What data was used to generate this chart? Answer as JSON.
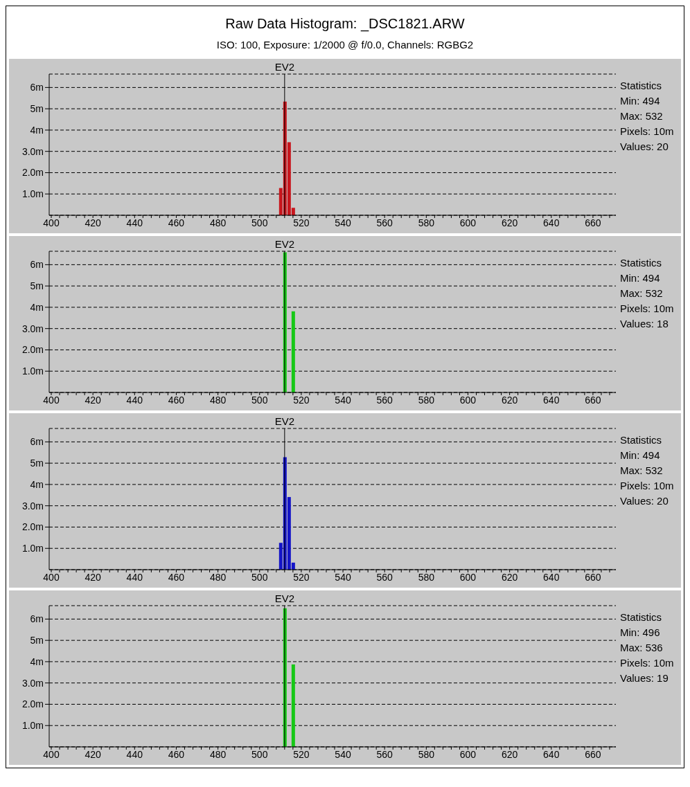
{
  "chart_data": [
    {
      "type": "bar",
      "title": "Raw Data Histogram: _DSC1821.ARW",
      "subtitle": "ISO: 100, Exposure: 1/2000 @ f/0.0, Channels: RGBG2",
      "x": [
        510,
        512,
        514,
        516
      ],
      "series": [
        {
          "color": "#c8161d",
          "values": [
            1.28,
            5.34,
            3.43,
            0.35
          ]
        }
      ],
      "xlim": [
        399,
        671
      ],
      "xticks": [
        400,
        {
          "value": 404,
          "label": null
        },
        {
          "value": 408,
          "label": null
        },
        {
          "value": 412,
          "label": null
        },
        {
          "value": 416,
          "label": null
        },
        420,
        {
          "value": 424,
          "label": null
        },
        {
          "value": 428,
          "label": null
        },
        {
          "value": 432,
          "label": null
        },
        {
          "value": 436,
          "label": null
        },
        440,
        {
          "value": 444,
          "label": null
        },
        {
          "value": 448,
          "label": null
        },
        {
          "value": 452,
          "label": null
        },
        {
          "value": 456,
          "label": null
        },
        460,
        {
          "value": 464,
          "label": null
        },
        {
          "value": 468,
          "label": null
        },
        {
          "value": 472,
          "label": null
        },
        {
          "value": 476,
          "label": null
        },
        480,
        {
          "value": 484,
          "label": null
        },
        {
          "value": 488,
          "label": null
        },
        {
          "value": 492,
          "label": null
        },
        {
          "value": 496,
          "label": null
        },
        500,
        {
          "value": 504,
          "label": null
        },
        {
          "value": 508,
          "label": null
        },
        {
          "value": 512,
          "label": null
        },
        {
          "value": 516,
          "label": null
        },
        520,
        {
          "value": 524,
          "label": null
        },
        {
          "value": 528,
          "label": null
        },
        {
          "value": 532,
          "label": null
        },
        {
          "value": 536,
          "label": null
        },
        540,
        {
          "value": 544,
          "label": null
        },
        {
          "value": 548,
          "label": null
        },
        {
          "value": 552,
          "label": null
        },
        {
          "value": 556,
          "label": null
        },
        560,
        {
          "value": 564,
          "label": null
        },
        {
          "value": 568,
          "label": null
        },
        {
          "value": 572,
          "label": null
        },
        {
          "value": 576,
          "label": null
        },
        580,
        {
          "value": 584,
          "label": null
        },
        {
          "value": 588,
          "label": null
        },
        {
          "value": 592,
          "label": null
        },
        {
          "value": 596,
          "label": null
        },
        600,
        {
          "value": 604,
          "label": null
        },
        {
          "value": 608,
          "label": null
        },
        {
          "value": 612,
          "label": null
        },
        {
          "value": 616,
          "label": null
        },
        620,
        {
          "value": 624,
          "label": null
        },
        {
          "value": 628,
          "label": null
        },
        {
          "value": 632,
          "label": null
        },
        {
          "value": 636,
          "label": null
        },
        640,
        {
          "value": 644,
          "label": null
        },
        {
          "value": 648,
          "label": null
        },
        {
          "value": 652,
          "label": null
        },
        {
          "value": 656,
          "label": null
        },
        660,
        {
          "value": 664,
          "label": null
        },
        {
          "value": 668,
          "label": null
        }
      ],
      "ylim": [
        0,
        6.63
      ],
      "yticks": [
        {
          "value": 1,
          "label": "1.0m"
        },
        {
          "value": 2,
          "label": "2.0m"
        },
        {
          "value": 3,
          "label": "3.0m"
        },
        {
          "value": 4,
          "label": "4m"
        },
        {
          "value": 5,
          "label": "5m"
        },
        {
          "value": 6,
          "label": "6m"
        }
      ],
      "grid": "y",
      "ref_lines": [
        {
          "axis": "x",
          "value": 512,
          "label": "EV2",
          "color": "#000000"
        }
      ],
      "annotations": [
        "Statistics",
        "Min: 494",
        "Max: 532",
        "Pixels: 10m",
        "Values: 20"
      ]
    },
    {
      "type": "bar",
      "x": [
        512,
        516
      ],
      "series": [
        {
          "color": "#16c816",
          "values": [
            6.58,
            3.81
          ]
        }
      ],
      "xlim": [
        399,
        671
      ],
      "xticks": [
        400,
        {
          "value": 404,
          "label": null
        },
        {
          "value": 408,
          "label": null
        },
        {
          "value": 412,
          "label": null
        },
        {
          "value": 416,
          "label": null
        },
        420,
        {
          "value": 424,
          "label": null
        },
        {
          "value": 428,
          "label": null
        },
        {
          "value": 432,
          "label": null
        },
        {
          "value": 436,
          "label": null
        },
        440,
        {
          "value": 444,
          "label": null
        },
        {
          "value": 448,
          "label": null
        },
        {
          "value": 452,
          "label": null
        },
        {
          "value": 456,
          "label": null
        },
        460,
        {
          "value": 464,
          "label": null
        },
        {
          "value": 468,
          "label": null
        },
        {
          "value": 472,
          "label": null
        },
        {
          "value": 476,
          "label": null
        },
        480,
        {
          "value": 484,
          "label": null
        },
        {
          "value": 488,
          "label": null
        },
        {
          "value": 492,
          "label": null
        },
        {
          "value": 496,
          "label": null
        },
        500,
        {
          "value": 504,
          "label": null
        },
        {
          "value": 508,
          "label": null
        },
        {
          "value": 512,
          "label": null
        },
        {
          "value": 516,
          "label": null
        },
        520,
        {
          "value": 524,
          "label": null
        },
        {
          "value": 528,
          "label": null
        },
        {
          "value": 532,
          "label": null
        },
        {
          "value": 536,
          "label": null
        },
        540,
        {
          "value": 544,
          "label": null
        },
        {
          "value": 548,
          "label": null
        },
        {
          "value": 552,
          "label": null
        },
        {
          "value": 556,
          "label": null
        },
        560,
        {
          "value": 564,
          "label": null
        },
        {
          "value": 568,
          "label": null
        },
        {
          "value": 572,
          "label": null
        },
        {
          "value": 576,
          "label": null
        },
        580,
        {
          "value": 584,
          "label": null
        },
        {
          "value": 588,
          "label": null
        },
        {
          "value": 592,
          "label": null
        },
        {
          "value": 596,
          "label": null
        },
        600,
        {
          "value": 604,
          "label": null
        },
        {
          "value": 608,
          "label": null
        },
        {
          "value": 612,
          "label": null
        },
        {
          "value": 616,
          "label": null
        },
        620,
        {
          "value": 624,
          "label": null
        },
        {
          "value": 628,
          "label": null
        },
        {
          "value": 632,
          "label": null
        },
        {
          "value": 636,
          "label": null
        },
        640,
        {
          "value": 644,
          "label": null
        },
        {
          "value": 648,
          "label": null
        },
        {
          "value": 652,
          "label": null
        },
        {
          "value": 656,
          "label": null
        },
        660,
        {
          "value": 664,
          "label": null
        },
        {
          "value": 668,
          "label": null
        }
      ],
      "ylim": [
        0,
        6.63
      ],
      "yticks": [
        {
          "value": 1,
          "label": "1.0m"
        },
        {
          "value": 2,
          "label": "2.0m"
        },
        {
          "value": 3,
          "label": "3.0m"
        },
        {
          "value": 4,
          "label": "4m"
        },
        {
          "value": 5,
          "label": "5m"
        },
        {
          "value": 6,
          "label": "6m"
        }
      ],
      "grid": "y",
      "ref_lines": [
        {
          "axis": "x",
          "value": 512,
          "label": "EV2",
          "color": "#000000"
        }
      ],
      "annotations": [
        "Statistics",
        "Min: 494",
        "Max: 532",
        "Pixels: 10m",
        "Values: 18"
      ]
    },
    {
      "type": "bar",
      "x": [
        510,
        512,
        514,
        516
      ],
      "series": [
        {
          "color": "#1414c8",
          "values": [
            1.26,
            5.28,
            3.41,
            0.33
          ]
        }
      ],
      "xlim": [
        399,
        671
      ],
      "xticks": [
        400,
        {
          "value": 404,
          "label": null
        },
        {
          "value": 408,
          "label": null
        },
        {
          "value": 412,
          "label": null
        },
        {
          "value": 416,
          "label": null
        },
        420,
        {
          "value": 424,
          "label": null
        },
        {
          "value": 428,
          "label": null
        },
        {
          "value": 432,
          "label": null
        },
        {
          "value": 436,
          "label": null
        },
        440,
        {
          "value": 444,
          "label": null
        },
        {
          "value": 448,
          "label": null
        },
        {
          "value": 452,
          "label": null
        },
        {
          "value": 456,
          "label": null
        },
        460,
        {
          "value": 464,
          "label": null
        },
        {
          "value": 468,
          "label": null
        },
        {
          "value": 472,
          "label": null
        },
        {
          "value": 476,
          "label": null
        },
        480,
        {
          "value": 484,
          "label": null
        },
        {
          "value": 488,
          "label": null
        },
        {
          "value": 492,
          "label": null
        },
        {
          "value": 496,
          "label": null
        },
        500,
        {
          "value": 504,
          "label": null
        },
        {
          "value": 508,
          "label": null
        },
        {
          "value": 512,
          "label": null
        },
        {
          "value": 516,
          "label": null
        },
        520,
        {
          "value": 524,
          "label": null
        },
        {
          "value": 528,
          "label": null
        },
        {
          "value": 532,
          "label": null
        },
        {
          "value": 536,
          "label": null
        },
        540,
        {
          "value": 544,
          "label": null
        },
        {
          "value": 548,
          "label": null
        },
        {
          "value": 552,
          "label": null
        },
        {
          "value": 556,
          "label": null
        },
        560,
        {
          "value": 564,
          "label": null
        },
        {
          "value": 568,
          "label": null
        },
        {
          "value": 572,
          "label": null
        },
        {
          "value": 576,
          "label": null
        },
        580,
        {
          "value": 584,
          "label": null
        },
        {
          "value": 588,
          "label": null
        },
        {
          "value": 592,
          "label": null
        },
        {
          "value": 596,
          "label": null
        },
        600,
        {
          "value": 604,
          "label": null
        },
        {
          "value": 608,
          "label": null
        },
        {
          "value": 612,
          "label": null
        },
        {
          "value": 616,
          "label": null
        },
        620,
        {
          "value": 624,
          "label": null
        },
        {
          "value": 628,
          "label": null
        },
        {
          "value": 632,
          "label": null
        },
        {
          "value": 636,
          "label": null
        },
        640,
        {
          "value": 644,
          "label": null
        },
        {
          "value": 648,
          "label": null
        },
        {
          "value": 652,
          "label": null
        },
        {
          "value": 656,
          "label": null
        },
        660,
        {
          "value": 664,
          "label": null
        },
        {
          "value": 668,
          "label": null
        }
      ],
      "ylim": [
        0,
        6.63
      ],
      "yticks": [
        {
          "value": 1,
          "label": "1.0m"
        },
        {
          "value": 2,
          "label": "2.0m"
        },
        {
          "value": 3,
          "label": "3.0m"
        },
        {
          "value": 4,
          "label": "4m"
        },
        {
          "value": 5,
          "label": "5m"
        },
        {
          "value": 6,
          "label": "6m"
        }
      ],
      "grid": "y",
      "ref_lines": [
        {
          "axis": "x",
          "value": 512,
          "label": "EV2",
          "color": "#000000"
        }
      ],
      "annotations": [
        "Statistics",
        "Min: 494",
        "Max: 532",
        "Pixels: 10m",
        "Values: 20"
      ]
    },
    {
      "type": "bar",
      "x": [
        512,
        516
      ],
      "series": [
        {
          "color": "#16c816",
          "values": [
            6.51,
            3.87
          ]
        }
      ],
      "xlim": [
        399,
        671
      ],
      "xticks": [
        400,
        {
          "value": 404,
          "label": null
        },
        {
          "value": 408,
          "label": null
        },
        {
          "value": 412,
          "label": null
        },
        {
          "value": 416,
          "label": null
        },
        420,
        {
          "value": 424,
          "label": null
        },
        {
          "value": 428,
          "label": null
        },
        {
          "value": 432,
          "label": null
        },
        {
          "value": 436,
          "label": null
        },
        440,
        {
          "value": 444,
          "label": null
        },
        {
          "value": 448,
          "label": null
        },
        {
          "value": 452,
          "label": null
        },
        {
          "value": 456,
          "label": null
        },
        460,
        {
          "value": 464,
          "label": null
        },
        {
          "value": 468,
          "label": null
        },
        {
          "value": 472,
          "label": null
        },
        {
          "value": 476,
          "label": null
        },
        480,
        {
          "value": 484,
          "label": null
        },
        {
          "value": 488,
          "label": null
        },
        {
          "value": 492,
          "label": null
        },
        {
          "value": 496,
          "label": null
        },
        500,
        {
          "value": 504,
          "label": null
        },
        {
          "value": 508,
          "label": null
        },
        {
          "value": 512,
          "label": null
        },
        {
          "value": 516,
          "label": null
        },
        520,
        {
          "value": 524,
          "label": null
        },
        {
          "value": 528,
          "label": null
        },
        {
          "value": 532,
          "label": null
        },
        {
          "value": 536,
          "label": null
        },
        540,
        {
          "value": 544,
          "label": null
        },
        {
          "value": 548,
          "label": null
        },
        {
          "value": 552,
          "label": null
        },
        {
          "value": 556,
          "label": null
        },
        560,
        {
          "value": 564,
          "label": null
        },
        {
          "value": 568,
          "label": null
        },
        {
          "value": 572,
          "label": null
        },
        {
          "value": 576,
          "label": null
        },
        580,
        {
          "value": 584,
          "label": null
        },
        {
          "value": 588,
          "label": null
        },
        {
          "value": 592,
          "label": null
        },
        {
          "value": 596,
          "label": null
        },
        600,
        {
          "value": 604,
          "label": null
        },
        {
          "value": 608,
          "label": null
        },
        {
          "value": 612,
          "label": null
        },
        {
          "value": 616,
          "label": null
        },
        620,
        {
          "value": 624,
          "label": null
        },
        {
          "value": 628,
          "label": null
        },
        {
          "value": 632,
          "label": null
        },
        {
          "value": 636,
          "label": null
        },
        640,
        {
          "value": 644,
          "label": null
        },
        {
          "value": 648,
          "label": null
        },
        {
          "value": 652,
          "label": null
        },
        {
          "value": 656,
          "label": null
        },
        660,
        {
          "value": 664,
          "label": null
        },
        {
          "value": 668,
          "label": null
        }
      ],
      "ylim": [
        0,
        6.63
      ],
      "yticks": [
        {
          "value": 1,
          "label": "1.0m"
        },
        {
          "value": 2,
          "label": "2.0m"
        },
        {
          "value": 3,
          "label": "3.0m"
        },
        {
          "value": 4,
          "label": "4m"
        },
        {
          "value": 5,
          "label": "5m"
        },
        {
          "value": 6,
          "label": "6m"
        }
      ],
      "grid": "y",
      "ref_lines": [
        {
          "axis": "x",
          "value": 512,
          "label": "EV2",
          "color": "#000000"
        }
      ],
      "annotations": [
        "Statistics",
        "Min: 496",
        "Max: 536",
        "Pixels: 10m",
        "Values: 19"
      ]
    }
  ]
}
